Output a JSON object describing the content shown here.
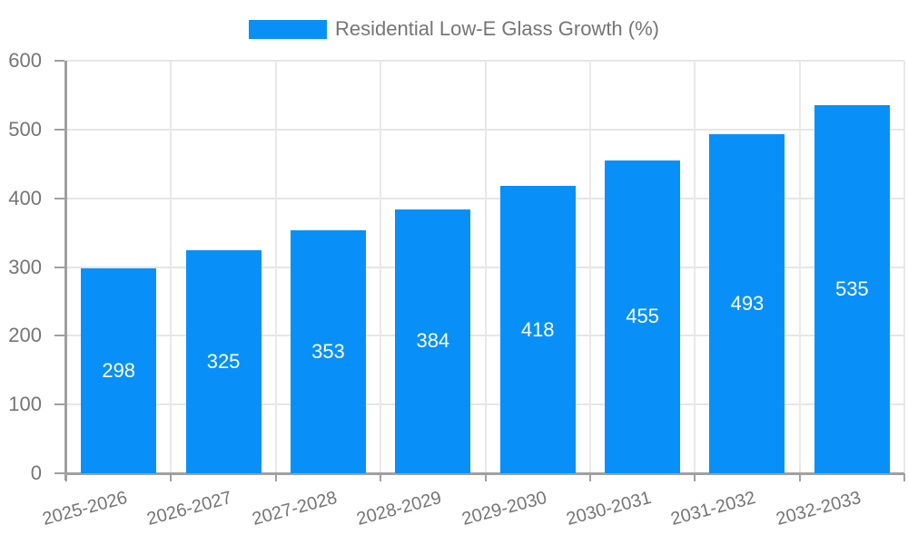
{
  "legend": {
    "label": "Residential Low-E Glass Growth (%)"
  },
  "chart_data": {
    "type": "bar",
    "title": "",
    "series_name": "Residential Low-E Glass Growth (%)",
    "categories": [
      "2025-2026",
      "2026-2027",
      "2027-2028",
      "2028-2029",
      "2029-2030",
      "2030-2031",
      "2031-2032",
      "2032-2033"
    ],
    "values": [
      298,
      325,
      353,
      384,
      418,
      455,
      493,
      535
    ],
    "xlabel": "",
    "ylabel": "",
    "ylim": [
      0,
      600
    ],
    "yticks": [
      0,
      100,
      200,
      300,
      400,
      500,
      600
    ],
    "grid": "horizontal and vertical gridlines on",
    "legend_position": "top-center",
    "value_labels": "inside bars, centered, white",
    "colors": {
      "bar": "#0890f8",
      "value_label": "#ffffff",
      "axis_text": "#757575",
      "gridline": "#e6e6e6",
      "axis_line": "#a0a0a0"
    }
  }
}
